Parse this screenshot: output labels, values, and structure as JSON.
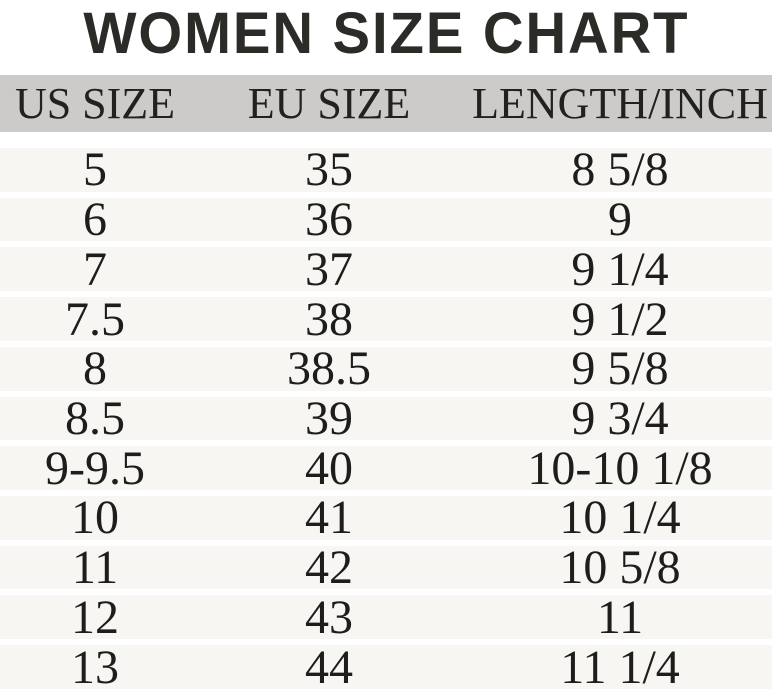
{
  "title": "WOMEN SIZE CHART",
  "table": {
    "headers": [
      "US SIZE",
      "EU SIZE",
      "LENGTH/INCH"
    ],
    "rows": [
      [
        "5",
        "35",
        "8 5/8"
      ],
      [
        "6",
        "36",
        "9"
      ],
      [
        "7",
        "37",
        "9 1/4"
      ],
      [
        "7.5",
        "38",
        "9 1/2"
      ],
      [
        "8",
        "38.5",
        "9 5/8"
      ],
      [
        "8.5",
        "39",
        "9 3/4"
      ],
      [
        "9-9.5",
        "40",
        "10-10 1/8"
      ],
      [
        "10",
        "41",
        "10 1/4"
      ],
      [
        "11",
        "42",
        "10 5/8"
      ],
      [
        "12",
        "43",
        "11"
      ],
      [
        "13",
        "44",
        "11 1/4"
      ]
    ]
  },
  "colors": {
    "page_bg": "#ffffff",
    "header_bg": "#cccbc9",
    "row_bg": "#f7f6f3",
    "separator": "#ffffff",
    "title_text": "#2b2b27",
    "body_text": "#1d1d1b"
  },
  "chart_data": {
    "type": "table",
    "title": "WOMEN SIZE CHART",
    "columns": [
      "US SIZE",
      "EU SIZE",
      "LENGTH/INCH"
    ],
    "rows": [
      [
        "5",
        "35",
        "8 5/8"
      ],
      [
        "6",
        "36",
        "9"
      ],
      [
        "7",
        "37",
        "9 1/4"
      ],
      [
        "7.5",
        "38",
        "9 1/2"
      ],
      [
        "8",
        "38.5",
        "9 5/8"
      ],
      [
        "8.5",
        "39",
        "9 3/4"
      ],
      [
        "9-9.5",
        "40",
        "10-10 1/8"
      ],
      [
        "10",
        "41",
        "10 1/4"
      ],
      [
        "11",
        "42",
        "10 5/8"
      ],
      [
        "12",
        "43",
        "11"
      ],
      [
        "13",
        "44",
        "11 1/4"
      ]
    ],
    "layout": "3 centered columns; gray header band; 11 light rows with white separators"
  }
}
